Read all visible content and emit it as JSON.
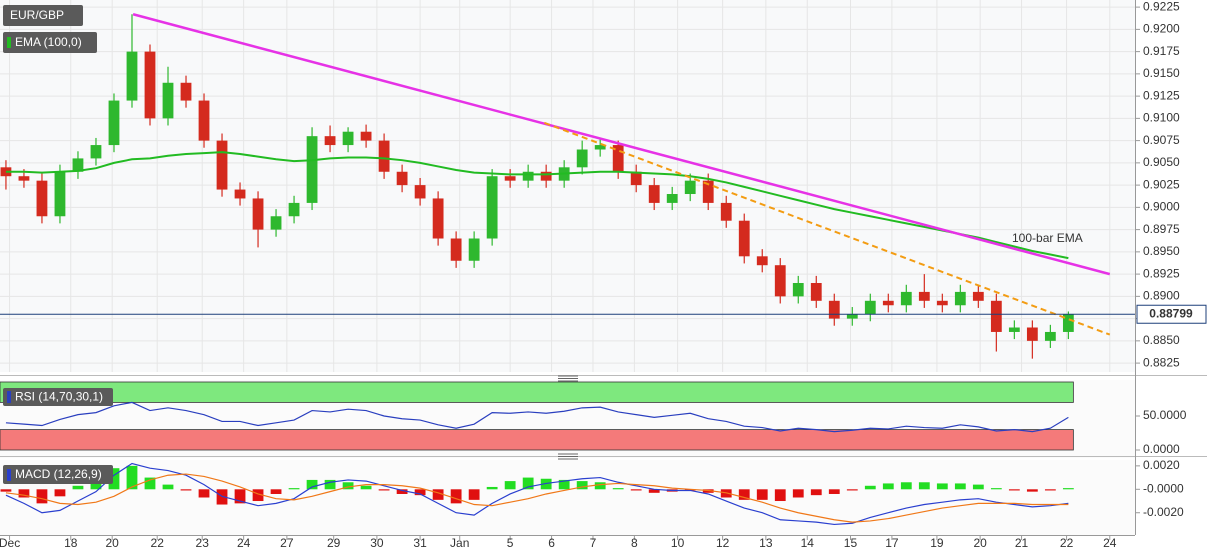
{
  "chart_data": [
    {
      "type": "candlestick",
      "title": "EUR/GBP",
      "open": [
        0.9045,
        0.9035,
        0.903,
        0.899,
        0.904,
        0.9055,
        0.907,
        0.912,
        0.9175,
        0.91,
        0.914,
        0.912,
        0.9075,
        0.902,
        0.901,
        0.8975,
        0.899,
        0.9005,
        0.908,
        0.907,
        0.9085,
        0.9075,
        0.904,
        0.9025,
        0.901,
        0.8965,
        0.894,
        0.8965,
        0.9035,
        0.903,
        0.904,
        0.903,
        0.9045,
        0.9065,
        0.907,
        0.904,
        0.9025,
        0.9005,
        0.9015,
        0.903,
        0.9005,
        0.8985,
        0.8945,
        0.8935,
        0.89,
        0.8915,
        0.8895,
        0.8875,
        0.888,
        0.8895,
        0.889,
        0.8905,
        0.8895,
        0.889,
        0.8905,
        0.8895,
        0.886,
        0.8865,
        0.885,
        0.886
      ],
      "high": [
        0.9053,
        0.9043,
        0.9038,
        0.9048,
        0.9063,
        0.9078,
        0.9128,
        0.9217,
        0.9183,
        0.9158,
        0.9148,
        0.9128,
        0.9083,
        0.9028,
        0.9018,
        0.8998,
        0.9013,
        0.909,
        0.9092,
        0.909,
        0.9093,
        0.9083,
        0.9048,
        0.9033,
        0.9018,
        0.8973,
        0.8973,
        0.9043,
        0.9043,
        0.9048,
        0.9048,
        0.9053,
        0.9075,
        0.9078,
        0.9075,
        0.9048,
        0.9033,
        0.9023,
        0.9038,
        0.9038,
        0.9013,
        0.8993,
        0.8953,
        0.8943,
        0.8923,
        0.8923,
        0.8903,
        0.8888,
        0.8903,
        0.8903,
        0.8913,
        0.8925,
        0.8903,
        0.8913,
        0.8913,
        0.8903,
        0.8873,
        0.8873,
        0.8868,
        0.8883
      ],
      "low": [
        0.902,
        0.9022,
        0.8982,
        0.8982,
        0.9032,
        0.9047,
        0.9062,
        0.9112,
        0.9092,
        0.9092,
        0.9112,
        0.9067,
        0.9012,
        0.9002,
        0.8955,
        0.8967,
        0.8982,
        0.8997,
        0.9062,
        0.9062,
        0.9067,
        0.9032,
        0.9017,
        0.9002,
        0.8957,
        0.8932,
        0.8932,
        0.8957,
        0.9022,
        0.9022,
        0.9022,
        0.9022,
        0.9037,
        0.9057,
        0.9032,
        0.9017,
        0.8997,
        0.8997,
        0.9007,
        0.8997,
        0.8977,
        0.8937,
        0.8927,
        0.8892,
        0.8892,
        0.8887,
        0.8867,
        0.8867,
        0.8872,
        0.8882,
        0.8882,
        0.8887,
        0.8882,
        0.8882,
        0.8887,
        0.8838,
        0.8852,
        0.883,
        0.8842,
        0.8852
      ],
      "close": [
        0.9035,
        0.903,
        0.899,
        0.904,
        0.9055,
        0.907,
        0.912,
        0.9175,
        0.91,
        0.914,
        0.912,
        0.9075,
        0.902,
        0.901,
        0.8975,
        0.899,
        0.9005,
        0.908,
        0.907,
        0.9085,
        0.9075,
        0.904,
        0.9025,
        0.901,
        0.8965,
        0.894,
        0.8965,
        0.9035,
        0.903,
        0.904,
        0.903,
        0.9045,
        0.9065,
        0.907,
        0.904,
        0.9025,
        0.9005,
        0.9015,
        0.903,
        0.9005,
        0.8985,
        0.8945,
        0.8935,
        0.89,
        0.8915,
        0.8895,
        0.8875,
        0.888,
        0.8895,
        0.889,
        0.8905,
        0.8895,
        0.889,
        0.8905,
        0.8895,
        0.886,
        0.8865,
        0.885,
        0.886,
        0.888
      ],
      "up_color": "#2eb82e",
      "down_color": "#d42a1e",
      "series": [
        {
          "name": "EMA (100,0)",
          "color": "#22bb22",
          "values": [
            0.904,
            0.904,
            0.9039,
            0.904,
            0.9041,
            0.9044,
            0.905,
            0.9054,
            0.9055,
            0.9058,
            0.906,
            0.9061,
            0.9062,
            0.906,
            0.9057,
            0.9054,
            0.9052,
            0.9053,
            0.9055,
            0.9056,
            0.9056,
            0.9055,
            0.9053,
            0.905,
            0.9046,
            0.9042,
            0.9039,
            0.9038,
            0.9037,
            0.9037,
            0.9037,
            0.9038,
            0.9039,
            0.904,
            0.904,
            0.9039,
            0.9038,
            0.9037,
            0.9035,
            0.9032,
            0.9028,
            0.9023,
            0.9018,
            0.9013,
            0.9008,
            0.9003,
            0.8998,
            0.8994,
            0.899,
            0.8986,
            0.8982,
            0.8978,
            0.8974,
            0.897,
            0.8966,
            0.8961,
            0.8956,
            0.8951,
            0.8947,
            0.8943
          ]
        }
      ],
      "trendlines": [
        {
          "x": [
            7.06,
            61.3
          ],
          "y": [
            0.9217,
            0.8925
          ],
          "color": "#e632e6",
          "dashed": false
        },
        {
          "x": [
            29.9,
            61.3
          ],
          "y": [
            0.9095,
            0.8857
          ],
          "color": "#f39c12",
          "dashed": true
        }
      ],
      "annotation": "100-bar EMA",
      "annotation_color": "#22aa22",
      "current_price": 0.88799,
      "xlim": [
        -0.33,
        62.7
      ],
      "xticks": [
        {
          "value": 0.2,
          "label": "Dec"
        },
        {
          "value": 3.6,
          "label": "18"
        },
        {
          "value": 5.9,
          "label": "20"
        },
        {
          "value": 8.4,
          "label": "22"
        },
        {
          "value": 10.9,
          "label": "23"
        },
        {
          "value": 13.2,
          "label": "24"
        },
        {
          "value": 15.6,
          "label": "27"
        },
        {
          "value": 18.2,
          "label": "29"
        },
        {
          "value": 20.6,
          "label": "30"
        },
        {
          "value": 23.0,
          "label": "31"
        },
        {
          "value": 25.2,
          "label": "Jan"
        },
        {
          "value": 28.0,
          "label": "5"
        },
        {
          "value": 30.3,
          "label": "6"
        },
        {
          "value": 32.6,
          "label": "7"
        },
        {
          "value": 34.9,
          "label": "8"
        },
        {
          "value": 37.3,
          "label": "10"
        },
        {
          "value": 39.8,
          "label": "12"
        },
        {
          "value": 42.2,
          "label": "13"
        },
        {
          "value": 44.5,
          "label": "14"
        },
        {
          "value": 46.9,
          "label": "15"
        },
        {
          "value": 49.2,
          "label": "17"
        },
        {
          "value": 51.7,
          "label": "19"
        },
        {
          "value": 54.1,
          "label": "20"
        },
        {
          "value": 56.4,
          "label": "21"
        },
        {
          "value": 58.9,
          "label": "22"
        },
        {
          "value": 61.3,
          "label": "24"
        }
      ],
      "ylim": [
        0.8815,
        0.9233
      ],
      "yticks": [
        0.8825,
        {
          "value": 0.885,
          "label": "0.8850"
        },
        0.8875,
        {
          "value": 0.89,
          "label": "0.8900"
        },
        0.8925,
        {
          "value": 0.895,
          "label": "0.8950"
        },
        0.8975,
        {
          "value": 0.9,
          "label": "0.9000"
        },
        0.9025,
        {
          "value": 0.905,
          "label": "0.9050"
        },
        0.9075,
        {
          "value": 0.91,
          "label": "0.9100"
        },
        0.9125,
        {
          "value": 0.915,
          "label": "0.9150"
        },
        0.9175,
        {
          "value": 0.92,
          "label": "0.9200"
        },
        0.9225
      ],
      "grid": true
    },
    {
      "type": "line",
      "title": "RSI (14,70,30,1)",
      "color": "#2a3fbf",
      "values": [
        40,
        38,
        36,
        45,
        52,
        55,
        65,
        70,
        58,
        62,
        58,
        52,
        42,
        42,
        36,
        40,
        44,
        58,
        56,
        60,
        58,
        50,
        46,
        44,
        37,
        32,
        38,
        55,
        54,
        56,
        54,
        57,
        62,
        63,
        56,
        52,
        48,
        51,
        54,
        46,
        42,
        35,
        33,
        28,
        32,
        30,
        27,
        29,
        32,
        31,
        35,
        33,
        32,
        37,
        34,
        28,
        30,
        27,
        32,
        48
      ],
      "levels": [
        70,
        30
      ],
      "upper_color": "#7ee87e",
      "lower_color": "#f47a7a",
      "ylim": [
        0,
        100
      ],
      "yticks": [
        {
          "value": 50,
          "label": "50.0000"
        },
        {
          "value": 0,
          "label": "0.0000"
        }
      ]
    },
    {
      "type": "macd",
      "title": "MACD (12,26,9)",
      "macd_color": "#2a3fcf",
      "signal_color": "#f07818",
      "up_color": "#22dd22",
      "down_color": "#e01010",
      "macd": [
        -0.0005,
        -0.0012,
        -0.002,
        -0.0018,
        -0.001,
        -0.0002,
        0.0012,
        0.0022,
        0.0018,
        0.0016,
        0.0012,
        0.0004,
        -0.0006,
        -0.001,
        -0.0014,
        -0.0012,
        -0.0008,
        0.0002,
        0.0006,
        0.0008,
        0.0007,
        0.0003,
        -0.0001,
        -0.0004,
        -0.0012,
        -0.002,
        -0.0022,
        -0.0012,
        -0.0004,
        0.0002,
        0.0005,
        0.0007,
        0.0009,
        0.001,
        0.0006,
        0.0003,
        0,
        -0.0001,
        -0.0001,
        -0.0004,
        -0.001,
        -0.0016,
        -0.002,
        -0.0026,
        -0.0027,
        -0.0028,
        -0.003,
        -0.0029,
        -0.0024,
        -0.002,
        -0.0016,
        -0.0013,
        -0.0011,
        -0.0009,
        -0.0008,
        -0.0011,
        -0.0013,
        -0.0015,
        -0.0014,
        -0.0012
      ],
      "signal": [
        -0.0003,
        -0.0005,
        -0.0008,
        -0.0012,
        -0.0013,
        -0.0011,
        -0.0006,
        0.0002,
        0.0008,
        0.0012,
        0.0013,
        0.0011,
        0.0007,
        0.0002,
        -0.0004,
        -0.0008,
        -0.0009,
        -0.0006,
        -0.0002,
        0.0002,
        0.0004,
        0.0004,
        0.0003,
        0.0001,
        -0.0003,
        -0.0008,
        -0.0013,
        -0.0014,
        -0.0011,
        -0.0008,
        -0.0004,
        -0.0001,
        0.0002,
        0.0004,
        0.0005,
        0.0004,
        0.0003,
        0.0001,
        0,
        -0.0001,
        -0.0003,
        -0.0007,
        -0.0011,
        -0.0016,
        -0.002,
        -0.0023,
        -0.0026,
        -0.0028,
        -0.0027,
        -0.0025,
        -0.0022,
        -0.0019,
        -0.0016,
        -0.0014,
        -0.0012,
        -0.0012,
        -0.0012,
        -0.0013,
        -0.0013,
        -0.0013
      ],
      "histogram": [
        -0.0002,
        -0.0007,
        -0.0012,
        -0.0006,
        0.0003,
        0.0009,
        0.0018,
        0.002,
        0.001,
        0.0004,
        -0.0001,
        -0.0007,
        -0.0013,
        -0.0012,
        -0.001,
        -0.0004,
        0.0001,
        0.0008,
        0.0008,
        0.0006,
        0.0003,
        -0.0001,
        -0.0004,
        -0.0005,
        -0.0009,
        -0.0012,
        -0.0009,
        0.0002,
        0.0007,
        0.001,
        0.0009,
        0.0008,
        0.0007,
        0.0006,
        0.0001,
        -0.0001,
        -0.0003,
        -0.0002,
        -0.0001,
        -0.0003,
        -0.0007,
        -0.0009,
        -0.0009,
        -0.001,
        -0.0007,
        -0.0005,
        -0.0004,
        -0.0001,
        0.0003,
        0.0005,
        0.0006,
        0.0006,
        0.0005,
        0.0005,
        0.0004,
        0.0001,
        -0.0001,
        -0.0002,
        -0.0001,
        0.0001
      ],
      "ylim": [
        -0.0039,
        0.0025
      ],
      "yticks": [
        {
          "value": 0.002,
          "label": "0.0020"
        },
        {
          "value": 0,
          "label": "-0.0000"
        },
        {
          "value": -0.002,
          "label": "-0.0020"
        }
      ]
    }
  ]
}
